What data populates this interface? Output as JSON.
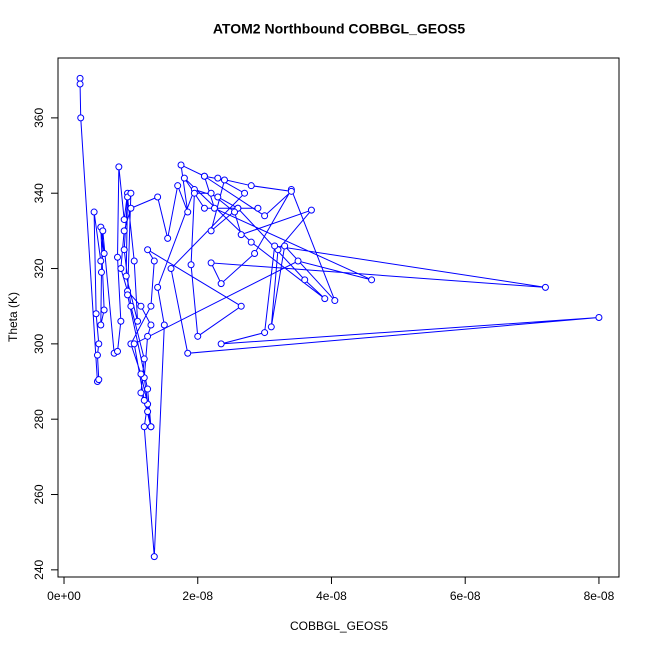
{
  "chart_data": {
    "type": "line",
    "title": "ATOM2 Northbound COBBGL_GEOS5",
    "x_label": "COBBGL_GEOS5",
    "y_label": "Theta (K)",
    "xlim": [
      -9e-10,
      8.3e-08
    ],
    "ylim": [
      238.1,
      375.9
    ],
    "xticks": [
      {
        "value": 0,
        "label": "0e+00"
      },
      {
        "value": 2e-08,
        "label": "2e-08"
      },
      {
        "value": 4e-08,
        "label": "4e-08"
      },
      {
        "value": 6e-08,
        "label": "6e-08"
      },
      {
        "value": 8e-08,
        "label": "8e-08"
      }
    ],
    "yticks": [
      240,
      260,
      280,
      300,
      320,
      340,
      360
    ],
    "grid": false,
    "series": [
      {
        "color": "#0000ff",
        "x": [
          2.4e-09,
          2.4e-09,
          2.5e-09,
          5e-09,
          5.2e-09,
          5e-09,
          5.2e-09,
          4.8e-09,
          4.5e-09,
          5.5e-09,
          6e-09,
          5.5e-09,
          6e-09,
          5.5e-09,
          5.6e-09,
          5.8e-09,
          7.5e-09,
          8e-09,
          8.5e-09,
          8e-09,
          8.2e-09,
          9e-09,
          9.5e-09,
          9.3e-09,
          1.1e-08,
          1.05e-08,
          9.5e-09,
          9e-09,
          1e-08,
          1.2e-08,
          1.15e-08,
          1.25e-08,
          1.3e-08,
          1.2e-08,
          1.25e-08,
          1.3e-08,
          1.15e-08,
          9.5e-09,
          8.5e-09,
          9e-09,
          1e-08,
          1.4e-08,
          1.55e-08,
          1.7e-08,
          1.85e-08,
          1.75e-08,
          2.1e-08,
          2.4e-08,
          2.2e-08,
          2.6e-08,
          2.9e-08,
          2.1e-08,
          1.8e-08,
          2.8e-08,
          3.9e-08,
          3.6e-08,
          2.6e-08,
          2.3e-08,
          1.95e-08,
          1.4e-08,
          1.5e-08,
          1.35e-08,
          1.2e-08,
          1.25e-08,
          1.15e-08,
          1e-08,
          1.3e-08,
          1.35e-08,
          1.25e-08,
          2.65e-08,
          2e-08,
          1.9e-08,
          1.95e-08,
          2.2e-08,
          2.55e-08,
          2.65e-08,
          3.7e-08,
          3.2e-08,
          3.1e-08,
          3.3e-08,
          4.05e-08,
          3.4e-08,
          2.85e-08,
          2.35e-08,
          2.2e-08,
          7.2e-08,
          3.15e-08,
          3e-08,
          2.35e-08,
          8e-08,
          1.85e-08,
          1.6e-08,
          2.7e-08,
          2.3e-08,
          2.8e-08,
          3.4e-08,
          3e-08,
          2.1e-08,
          2.25e-08,
          4.6e-08,
          3.5e-08,
          1.05e-08,
          1.2e-08,
          1.3e-08,
          1.25e-08,
          9.5e-09,
          1e-08
        ],
        "values": [
          370.5,
          369,
          360,
          290,
          290.5,
          297,
          300,
          308,
          335,
          322,
          324,
          331,
          309,
          305,
          319,
          330,
          297.5,
          298,
          306,
          323,
          347,
          333,
          340,
          318,
          306,
          322,
          339,
          325,
          310,
          296,
          287,
          282,
          278,
          291,
          302,
          305,
          310,
          314,
          320,
          330,
          336,
          339,
          328,
          342,
          335,
          347.5,
          344.5,
          343.5,
          330,
          336,
          336,
          336,
          344,
          327,
          312,
          317,
          336,
          339,
          341,
          315,
          305,
          243.5,
          278,
          284,
          292,
          300,
          310,
          322,
          325,
          310,
          302,
          321,
          340,
          340,
          335,
          329,
          335.5,
          325,
          304.5,
          326,
          311.5,
          341,
          324,
          316,
          321.5,
          315,
          326,
          303,
          300,
          307,
          297.5,
          320,
          340,
          344,
          342,
          340.5,
          334,
          344.5,
          336,
          317,
          322,
          300,
          285,
          278,
          288,
          313,
          340
        ]
      }
    ]
  }
}
